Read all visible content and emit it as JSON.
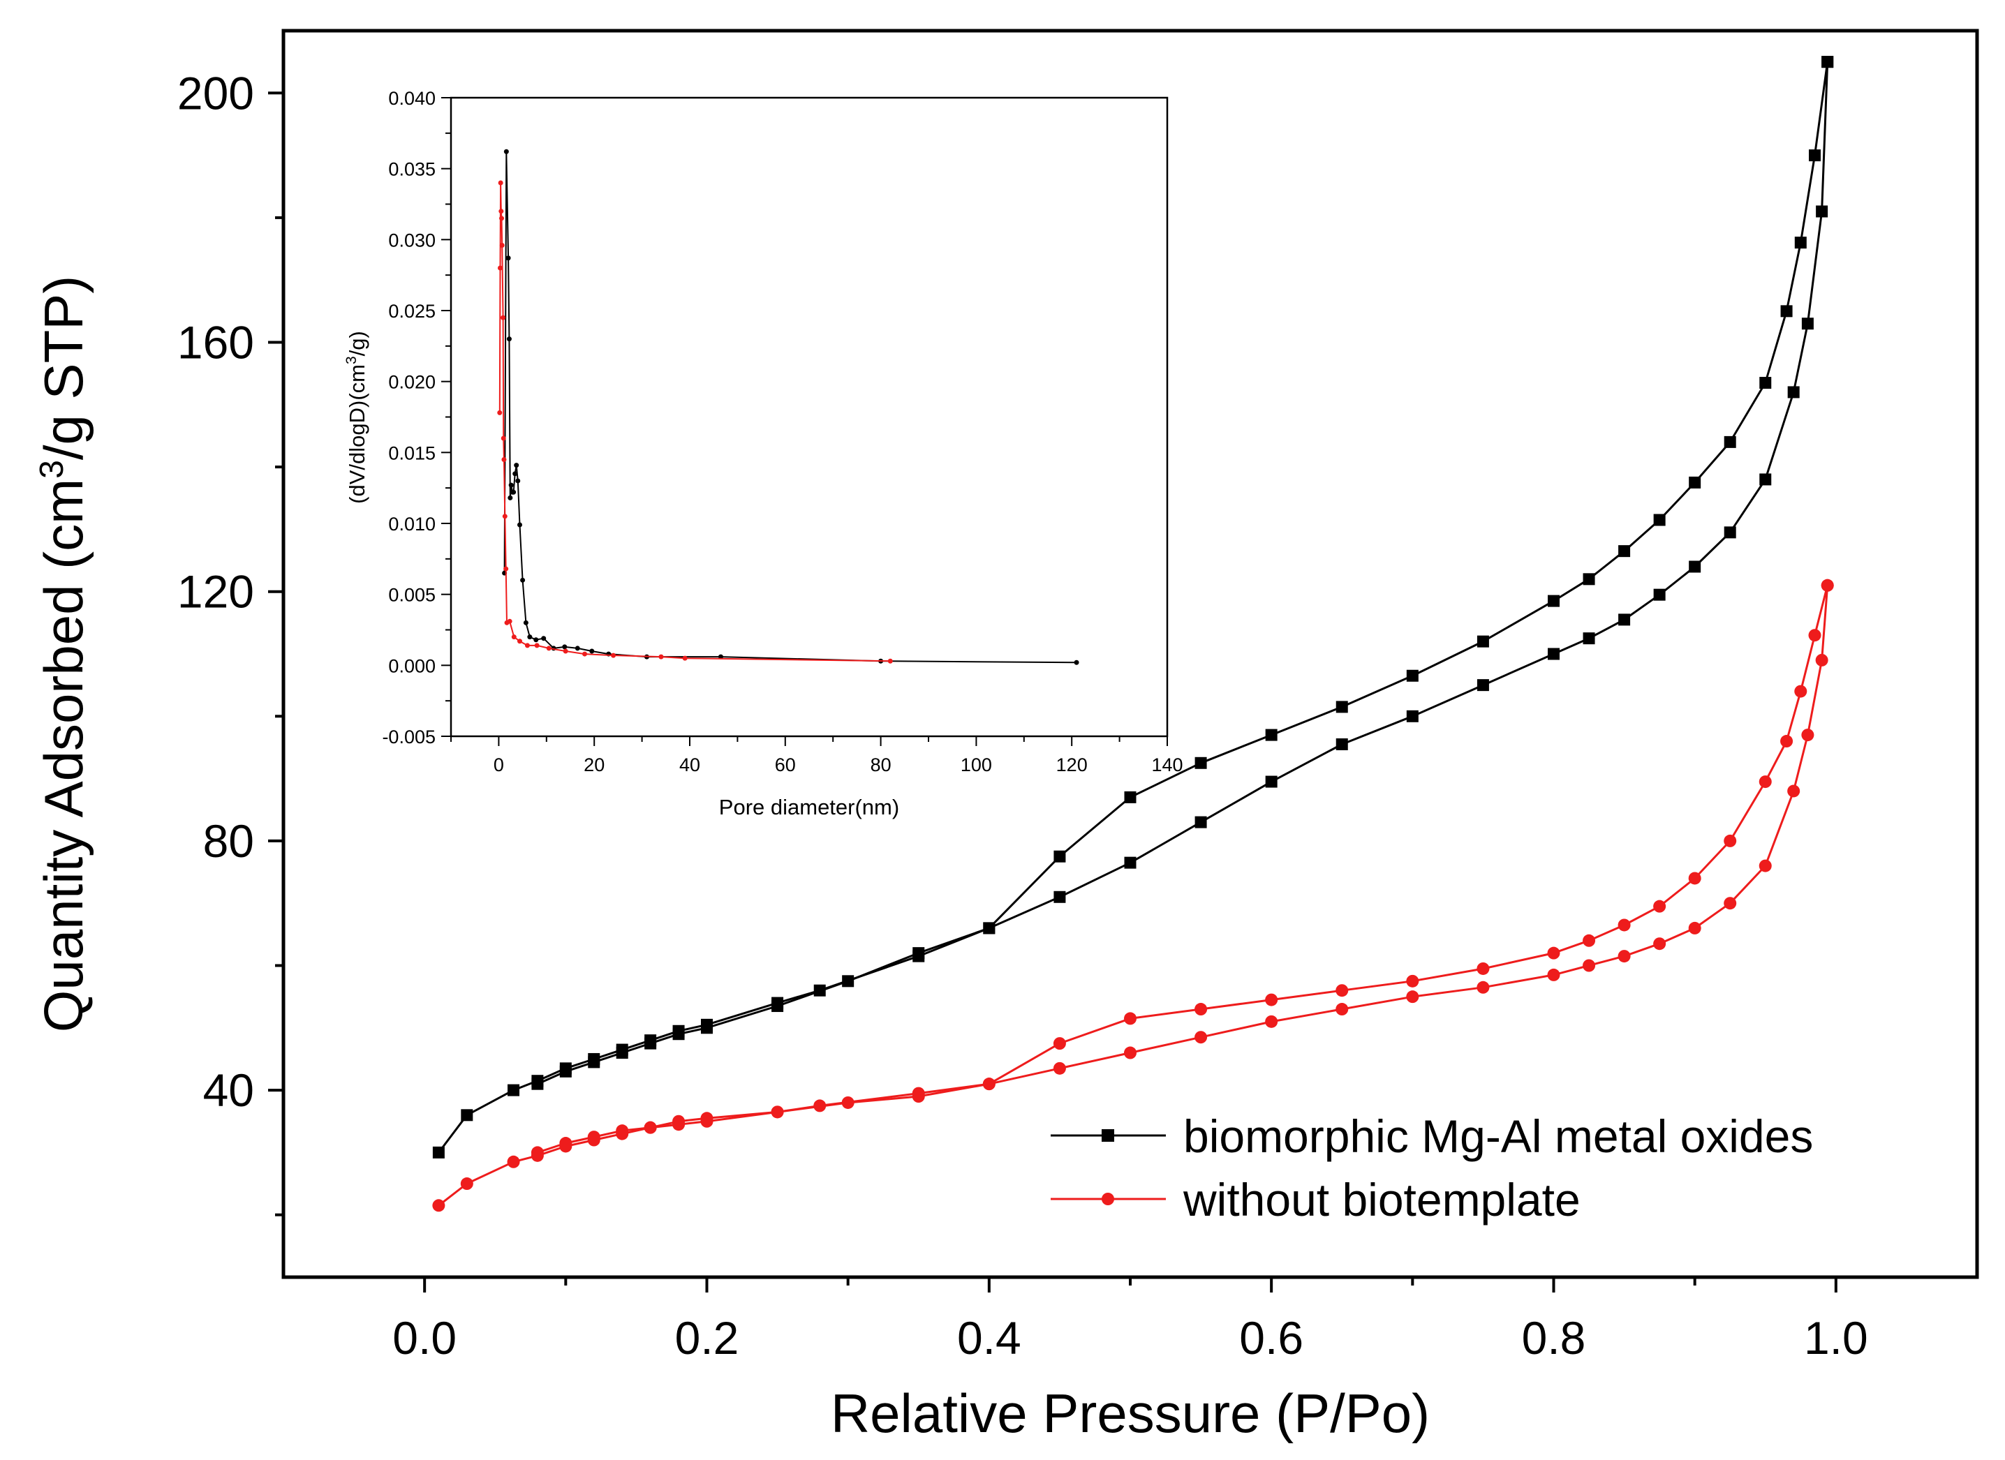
{
  "chart_data": [
    {
      "id": "main",
      "type": "line",
      "title": "",
      "xlabel": "Relative Pressure (P/Po)",
      "ylabel_main": "Quantity Adsorbed (cm",
      "ylabel_sup": "3",
      "ylabel_tail": "/g STP)",
      "xlim": [
        -0.1,
        1.1
      ],
      "ylim": [
        10,
        210
      ],
      "x_ticks": [
        0.0,
        0.2,
        0.4,
        0.6,
        0.8,
        1.0
      ],
      "x_tick_labels": [
        "0.0",
        "0.2",
        "0.4",
        "0.6",
        "0.8",
        "1.0"
      ],
      "y_ticks": [
        40,
        80,
        120,
        160,
        200
      ],
      "y_tick_labels": [
        "40",
        "80",
        "120",
        "160",
        "200"
      ],
      "legend_position": "bottom-right",
      "series": [
        {
          "name": "biomorphic Mg-Al metal oxides",
          "legend_label": "biomorphic Mg-Al metal oxides",
          "color": "#000000",
          "marker": "square",
          "branches": [
            {
              "name": "adsorption",
              "x": [
                0.01,
                0.03,
                0.063,
                0.08,
                0.1,
                0.12,
                0.14,
                0.16,
                0.18,
                0.2,
                0.25,
                0.28,
                0.35,
                0.4,
                0.45,
                0.5,
                0.55,
                0.6,
                0.65,
                0.7,
                0.75,
                0.8,
                0.825,
                0.85,
                0.875,
                0.9,
                0.925,
                0.95,
                0.97,
                0.98,
                0.99,
                0.994
              ],
              "y": [
                30,
                36,
                40,
                41.5,
                43.5,
                45,
                46.5,
                48,
                49.5,
                50.5,
                54,
                56,
                61.5,
                66,
                71,
                76.5,
                83,
                89.5,
                95.5,
                100,
                105,
                110,
                112.5,
                115.5,
                119.5,
                124,
                129.5,
                138,
                152,
                163,
                181,
                205
              ]
            },
            {
              "name": "desorption",
              "x": [
                0.994,
                0.985,
                0.975,
                0.965,
                0.95,
                0.925,
                0.9,
                0.875,
                0.85,
                0.825,
                0.8,
                0.75,
                0.7,
                0.65,
                0.6,
                0.55,
                0.5,
                0.45,
                0.4,
                0.35,
                0.3,
                0.25,
                0.2,
                0.18,
                0.16,
                0.14,
                0.12,
                0.1,
                0.08
              ],
              "y": [
                205,
                190,
                176,
                165,
                153.5,
                144,
                137.5,
                131.5,
                126.5,
                122,
                118.5,
                112,
                106.5,
                101.5,
                97,
                92.5,
                87,
                77.5,
                66,
                62,
                57.5,
                53.5,
                50,
                49,
                47.5,
                46,
                44.5,
                43,
                41
              ]
            }
          ]
        },
        {
          "name": "without biotemplate",
          "legend_label": "without biotemplate",
          "color": "#ee1c1c",
          "marker": "circle",
          "branches": [
            {
              "name": "adsorption",
              "x": [
                0.01,
                0.03,
                0.063,
                0.08,
                0.1,
                0.12,
                0.14,
                0.16,
                0.18,
                0.2,
                0.25,
                0.28,
                0.35,
                0.4,
                0.45,
                0.5,
                0.55,
                0.6,
                0.65,
                0.7,
                0.75,
                0.8,
                0.825,
                0.85,
                0.875,
                0.9,
                0.925,
                0.95,
                0.97,
                0.98,
                0.99,
                0.994
              ],
              "y": [
                21.5,
                25,
                28.5,
                29.5,
                31,
                32,
                33,
                34,
                34.5,
                35,
                36.5,
                37.5,
                39.5,
                41,
                43.5,
                46,
                48.5,
                51,
                53,
                55,
                56.5,
                58.5,
                60,
                61.5,
                63.5,
                66,
                70,
                76,
                88,
                97,
                109,
                121
              ]
            },
            {
              "name": "desorption",
              "x": [
                0.994,
                0.985,
                0.975,
                0.965,
                0.95,
                0.925,
                0.9,
                0.875,
                0.85,
                0.825,
                0.8,
                0.75,
                0.7,
                0.65,
                0.6,
                0.55,
                0.5,
                0.45,
                0.4,
                0.35,
                0.3,
                0.25,
                0.2,
                0.18,
                0.16,
                0.14,
                0.12,
                0.1,
                0.08
              ],
              "y": [
                121,
                113,
                104,
                96,
                89.5,
                80,
                74,
                69.5,
                66.5,
                64,
                62,
                59.5,
                57.5,
                56,
                54.5,
                53,
                51.5,
                47.5,
                41,
                39,
                38,
                36.5,
                35.5,
                35,
                34,
                33.5,
                32.5,
                31.5,
                30
              ]
            }
          ]
        }
      ]
    },
    {
      "id": "inset",
      "type": "line",
      "title": "",
      "xlabel": "Pore diameter(nm)",
      "ylabel_main": "(dV/dlogD)(cm",
      "ylabel_sup": "3",
      "ylabel_tail": "/g)",
      "xlim": [
        -10,
        140
      ],
      "ylim": [
        -0.005,
        0.04
      ],
      "x_ticks": [
        0,
        20,
        40,
        60,
        80,
        100,
        120,
        140
      ],
      "x_tick_labels": [
        "0",
        "20",
        "40",
        "60",
        "80",
        "100",
        "120",
        "140"
      ],
      "y_ticks": [
        -0.005,
        0.0,
        0.005,
        0.01,
        0.015,
        0.02,
        0.025,
        0.03,
        0.035,
        0.04
      ],
      "y_tick_labels": [
        "-0.005",
        "0.000",
        "0.005",
        "0.010",
        "0.015",
        "0.020",
        "0.025",
        "0.030",
        "0.035",
        "0.040"
      ],
      "series": [
        {
          "name": "biomorphic Mg-Al metal oxides",
          "color": "#000000",
          "x": [
            1.2,
            1.6,
            2.0,
            2.2,
            2.4,
            2.6,
            2.9,
            3.1,
            3.4,
            3.7,
            4.0,
            4.4,
            5.0,
            5.7,
            6.5,
            7.8,
            9.4,
            11.5,
            13.8,
            16.5,
            19.5,
            23,
            31,
            46.5,
            80,
            121
          ],
          "y": [
            0.0065,
            0.0362,
            0.0287,
            0.023,
            0.0118,
            0.0127,
            0.0122,
            0.0122,
            0.0135,
            0.0141,
            0.013,
            0.0099,
            0.006,
            0.003,
            0.002,
            0.0018,
            0.0019,
            0.0012,
            0.0013,
            0.0012,
            0.001,
            0.0008,
            0.0006,
            0.0006,
            0.0003,
            0.0002
          ]
        },
        {
          "name": "without biotemplate",
          "color": "#ee1c1c",
          "x": [
            0.2,
            0.3,
            0.4,
            0.5,
            0.6,
            0.7,
            0.9,
            1.0,
            1.1,
            1.3,
            1.5,
            1.7,
            2.3,
            3.2,
            4.4,
            6.0,
            8.0,
            10.5,
            14,
            18,
            24,
            34,
            39,
            82
          ],
          "y": [
            0.0178,
            0.028,
            0.034,
            0.032,
            0.0315,
            0.0296,
            0.0245,
            0.016,
            0.0145,
            0.0105,
            0.0068,
            0.003,
            0.0031,
            0.002,
            0.0017,
            0.0014,
            0.0014,
            0.0012,
            0.001,
            0.0008,
            0.0007,
            0.0006,
            0.0005,
            0.0003
          ]
        }
      ]
    }
  ]
}
